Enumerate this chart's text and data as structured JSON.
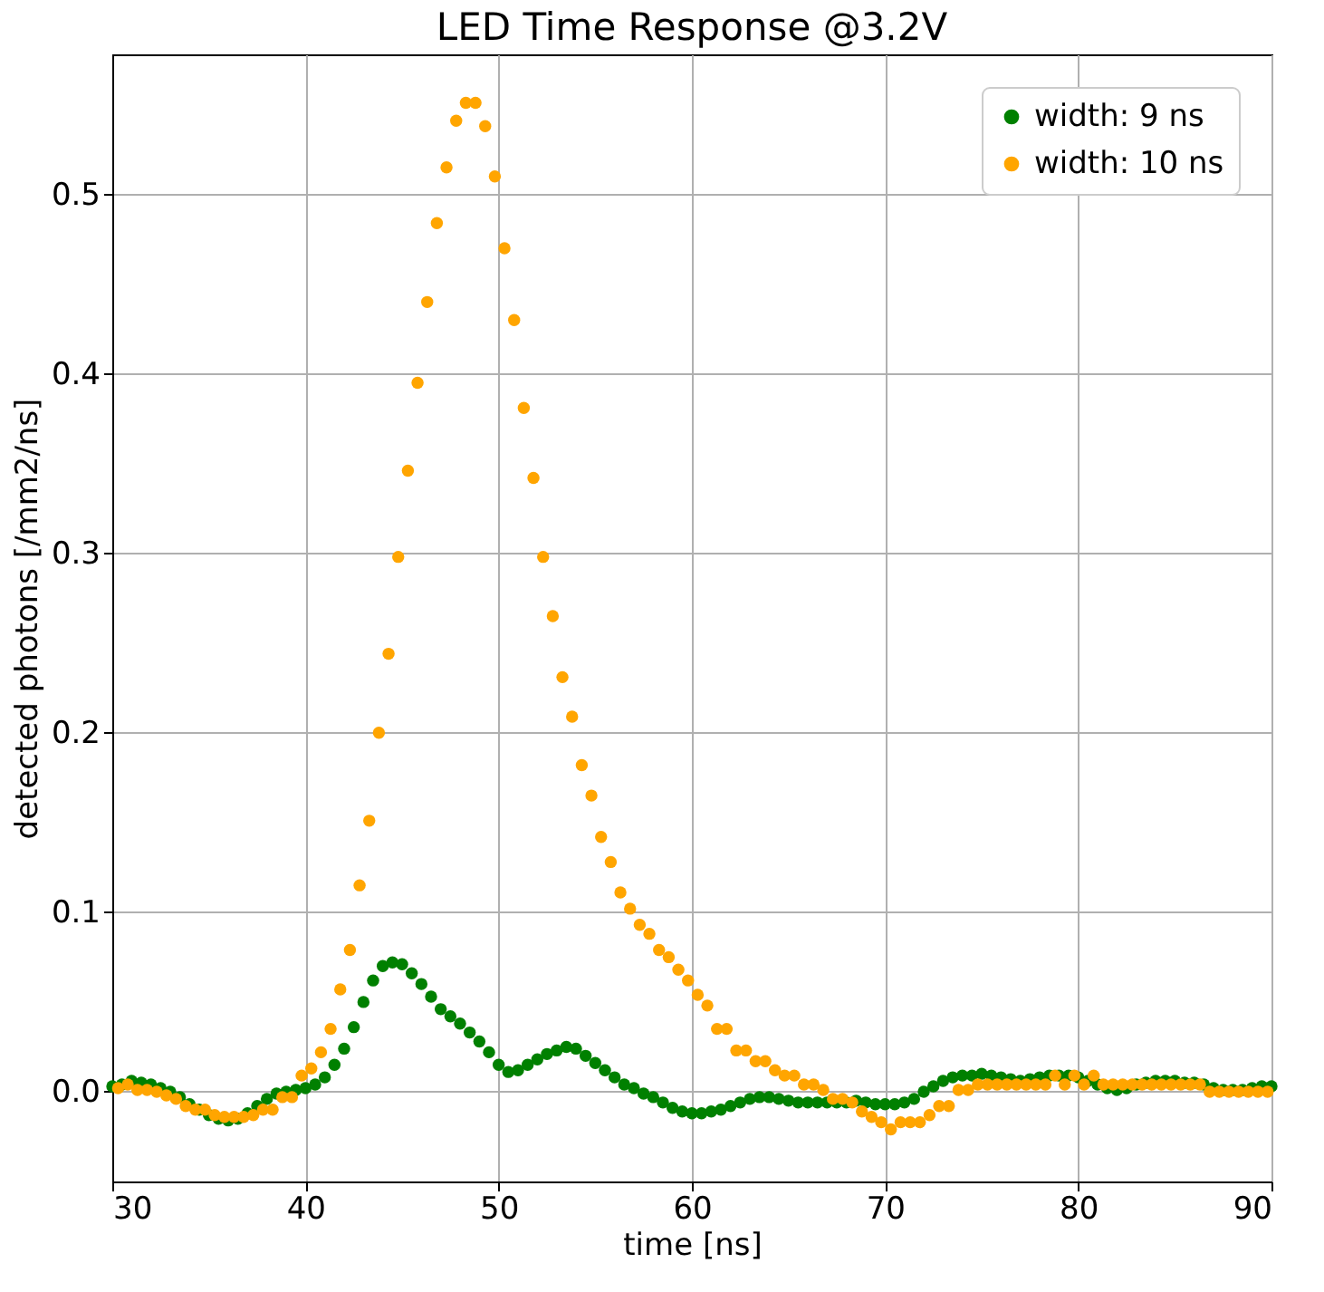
{
  "chart_data": {
    "type": "scatter",
    "title": "LED Time Response @3.2V",
    "xlabel": "time [ns]",
    "ylabel": "detected photons [/mm2/ns]",
    "xlim": [
      30,
      90
    ],
    "xticks": [
      30,
      40,
      50,
      60,
      70,
      80,
      90
    ],
    "ylim": [
      -0.05,
      0.578
    ],
    "yticks": [
      {
        "value": 0,
        "label": "0.0"
      },
      {
        "value": 0.1,
        "label": "0.1"
      },
      {
        "value": 0.2,
        "label": "0.2"
      },
      {
        "value": 0.3,
        "label": "0.3"
      },
      {
        "value": 0.4,
        "label": "0.4"
      },
      {
        "value": 0.5,
        "label": "0.5"
      }
    ],
    "grid": true,
    "legend": "top right",
    "marker": "circle",
    "series": [
      {
        "name": "width: 9 ns",
        "color": "#008000",
        "x": [
          30,
          30.5,
          31,
          31.5,
          32,
          32.5,
          33,
          33.5,
          34,
          34.5,
          35,
          35.5,
          36,
          36.5,
          37,
          37.5,
          38,
          38.5,
          39,
          39.5,
          40,
          40.5,
          41,
          41.5,
          42,
          42.5,
          43,
          43.5,
          44,
          44.5,
          45,
          45.5,
          46,
          46.5,
          47,
          47.5,
          48,
          48.5,
          49,
          49.5,
          50,
          50.5,
          51,
          51.5,
          52,
          52.5,
          53,
          53.5,
          54,
          54.5,
          55,
          55.5,
          56,
          56.5,
          57,
          57.5,
          58,
          58.5,
          59,
          59.5,
          60,
          60.5,
          61,
          61.5,
          62,
          62.5,
          63,
          63.5,
          64,
          64.5,
          65,
          65.5,
          66,
          66.5,
          67,
          67.5,
          68,
          68.5,
          69,
          69.5,
          70,
          70.5,
          71,
          71.5,
          72,
          72.5,
          73,
          73.5,
          74,
          74.5,
          75,
          75.5,
          76,
          76.5,
          77,
          77.5,
          78,
          78.5,
          79,
          79.5,
          80,
          80.5,
          81,
          81.5,
          82,
          82.5,
          83,
          83.5,
          84,
          84.5,
          85,
          85.5,
          86,
          86.5,
          87,
          87.5,
          88,
          88.5,
          89,
          89.5,
          90
        ],
        "values": [
          0.003,
          0.004,
          0.006,
          0.005,
          0.004,
          0.002,
          0.0,
          -0.003,
          -0.007,
          -0.01,
          -0.013,
          -0.015,
          -0.016,
          -0.015,
          -0.012,
          -0.008,
          -0.004,
          -0.001,
          0.0,
          0.001,
          0.002,
          0.004,
          0.008,
          0.015,
          0.024,
          0.036,
          0.05,
          0.062,
          0.07,
          0.072,
          0.071,
          0.066,
          0.06,
          0.053,
          0.046,
          0.042,
          0.038,
          0.033,
          0.028,
          0.022,
          0.015,
          0.011,
          0.012,
          0.015,
          0.018,
          0.021,
          0.023,
          0.025,
          0.024,
          0.02,
          0.016,
          0.012,
          0.008,
          0.004,
          0.002,
          -0.001,
          -0.003,
          -0.006,
          -0.009,
          -0.011,
          -0.012,
          -0.012,
          -0.011,
          -0.01,
          -0.008,
          -0.006,
          -0.004,
          -0.003,
          -0.003,
          -0.004,
          -0.005,
          -0.006,
          -0.006,
          -0.006,
          -0.006,
          -0.006,
          -0.006,
          -0.005,
          -0.006,
          -0.007,
          -0.007,
          -0.007,
          -0.006,
          -0.004,
          0.0,
          0.003,
          0.006,
          0.008,
          0.009,
          0.009,
          0.01,
          0.009,
          0.008,
          0.007,
          0.006,
          0.007,
          0.008,
          0.009,
          0.009,
          0.009,
          0.008,
          0.006,
          0.004,
          0.002,
          0.001,
          0.002,
          0.004,
          0.005,
          0.006,
          0.006,
          0.006,
          0.005,
          0.005,
          0.004,
          0.002,
          0.001,
          0.001,
          0.001,
          0.002,
          0.003,
          0.003
        ]
      },
      {
        "name": "width: 10 ns",
        "color": "#ffa500",
        "x": [
          30.3,
          30.8,
          31.3,
          31.8,
          32.3,
          32.8,
          33.3,
          33.8,
          34.3,
          34.8,
          35.3,
          35.8,
          36.3,
          36.8,
          37.3,
          37.8,
          38.3,
          38.8,
          39.3,
          39.8,
          40.3,
          40.8,
          41.3,
          41.8,
          42.3,
          42.8,
          43.3,
          43.8,
          44.3,
          44.8,
          45.3,
          45.8,
          46.3,
          46.8,
          47.3,
          47.8,
          48.3,
          48.8,
          49.3,
          49.8,
          50.3,
          50.8,
          51.3,
          51.8,
          52.3,
          52.8,
          53.3,
          53.8,
          54.3,
          54.8,
          55.3,
          55.8,
          56.3,
          56.8,
          57.3,
          57.8,
          58.3,
          58.8,
          59.3,
          59.8,
          60.3,
          60.8,
          61.3,
          61.8,
          62.3,
          62.8,
          63.3,
          63.8,
          64.3,
          64.8,
          65.3,
          65.8,
          66.3,
          66.8,
          67.3,
          67.8,
          68.3,
          68.8,
          69.3,
          69.8,
          70.3,
          70.8,
          71.3,
          71.8,
          72.3,
          72.8,
          73.3,
          73.8,
          74.3,
          74.8,
          75.3,
          75.8,
          76.3,
          76.8,
          77.3,
          77.8,
          78.3,
          78.8,
          79.3,
          79.8,
          80.3,
          80.8,
          81.3,
          81.8,
          82.3,
          82.8,
          83.3,
          83.8,
          84.3,
          84.8,
          85.3,
          85.8,
          86.3,
          86.8,
          87.3,
          87.8,
          88.3,
          88.8,
          89.3,
          89.8
        ],
        "values": [
          0.002,
          0.004,
          0.001,
          0.001,
          0.0,
          -0.002,
          -0.004,
          -0.008,
          -0.01,
          -0.01,
          -0.013,
          -0.014,
          -0.014,
          -0.014,
          -0.013,
          -0.01,
          -0.01,
          -0.003,
          -0.003,
          0.009,
          0.013,
          0.022,
          0.035,
          0.057,
          0.079,
          0.115,
          0.151,
          0.2,
          0.244,
          0.298,
          0.346,
          0.395,
          0.44,
          0.484,
          0.515,
          0.541,
          0.551,
          0.551,
          0.538,
          0.51,
          0.47,
          0.43,
          0.381,
          0.342,
          0.298,
          0.265,
          0.231,
          0.209,
          0.182,
          0.165,
          0.142,
          0.128,
          0.111,
          0.102,
          0.093,
          0.088,
          0.079,
          0.075,
          0.068,
          0.062,
          0.054,
          0.048,
          0.035,
          0.035,
          0.023,
          0.023,
          0.017,
          0.017,
          0.012,
          0.009,
          0.009,
          0.004,
          0.004,
          0.001,
          -0.004,
          -0.004,
          -0.006,
          -0.011,
          -0.014,
          -0.017,
          -0.021,
          -0.017,
          -0.017,
          -0.017,
          -0.013,
          -0.008,
          -0.008,
          0.001,
          0.001,
          0.004,
          0.004,
          0.004,
          0.004,
          0.004,
          0.004,
          0.004,
          0.004,
          0.009,
          0.004,
          0.009,
          0.004,
          0.009,
          0.004,
          0.004,
          0.004,
          0.004,
          0.004,
          0.004,
          0.004,
          0.004,
          0.004,
          0.004,
          0.004,
          0.0,
          0.0,
          0.0,
          0.0,
          0.0,
          0.0,
          0.0
        ]
      }
    ]
  }
}
